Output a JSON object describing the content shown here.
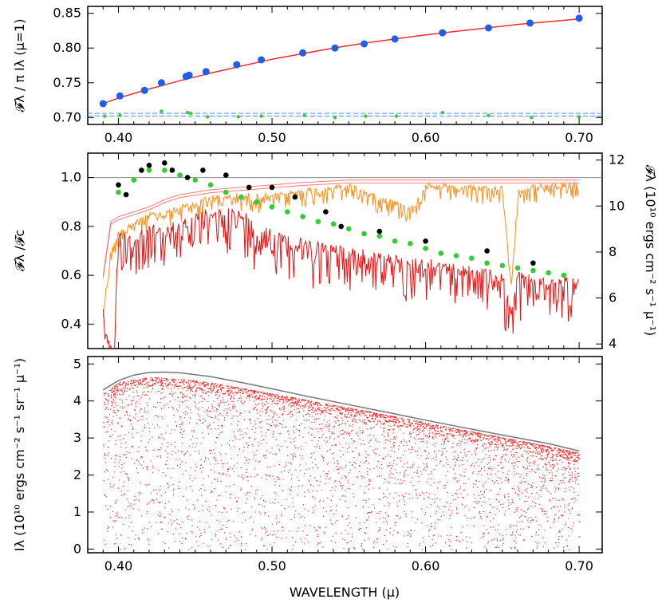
{
  "chart_data": [
    {
      "type": "line",
      "id": "top",
      "ylabel": "𝓕λ / π Iλ (μ=1)",
      "xlim": [
        0.38,
        0.715
      ],
      "ylim": [
        0.69,
        0.86
      ],
      "xticks": [
        "0.40",
        "0.50",
        "0.60",
        "0.70"
      ],
      "xtick_values": [
        0.4,
        0.5,
        0.6,
        0.7
      ],
      "yticks": [
        "0.70",
        "0.75",
        "0.80",
        "0.85"
      ],
      "ytick_values": [
        0.7,
        0.75,
        0.8,
        0.85
      ],
      "series": [
        {
          "kind": "curve",
          "color": "#ff2a2a",
          "x": [
            0.39,
            0.4,
            0.42,
            0.44,
            0.46,
            0.48,
            0.5,
            0.52,
            0.54,
            0.56,
            0.58,
            0.6,
            0.62,
            0.64,
            0.66,
            0.68,
            0.7
          ],
          "y": [
            0.72,
            0.728,
            0.741,
            0.753,
            0.764,
            0.774,
            0.784,
            0.792,
            0.8,
            0.807,
            0.813,
            0.819,
            0.824,
            0.829,
            0.834,
            0.838,
            0.842
          ]
        },
        {
          "kind": "points",
          "color": "#1f5fe8",
          "x": [
            0.39,
            0.401,
            0.417,
            0.428,
            0.444,
            0.446,
            0.457,
            0.477,
            0.493,
            0.52,
            0.541,
            0.56,
            0.58,
            0.611,
            0.641,
            0.668,
            0.7
          ],
          "y": [
            0.72,
            0.731,
            0.739,
            0.75,
            0.759,
            0.761,
            0.766,
            0.776,
            0.783,
            0.793,
            0.8,
            0.806,
            0.813,
            0.822,
            0.829,
            0.836,
            0.843
          ]
        },
        {
          "kind": "hline",
          "color": "#4f8fff",
          "y": [
            0.702,
            0.706
          ]
        },
        {
          "kind": "points-small",
          "color": "#33cc33",
          "x": [
            0.391,
            0.401,
            0.418,
            0.428,
            0.445,
            0.447,
            0.458,
            0.478,
            0.493,
            0.521,
            0.541,
            0.561,
            0.581,
            0.611,
            0.641,
            0.669,
            0.7
          ],
          "y": [
            0.702,
            0.703,
            0.688,
            0.709,
            0.707,
            0.706,
            0.701,
            0.701,
            0.702,
            0.703,
            0.7,
            0.702,
            0.702,
            0.707,
            0.703,
            0.7,
            0.701
          ]
        }
      ]
    },
    {
      "type": "line",
      "id": "middle",
      "ylabel": "𝓕λ /𝓕c",
      "ylabel_right": "𝓕λ (10¹⁰ ergs cm⁻² s⁻¹ μ⁻¹)",
      "xlim": [
        0.38,
        0.715
      ],
      "ylim": [
        0.3,
        1.1
      ],
      "yticks": [
        "0.4",
        "0.6",
        "0.8",
        "1.0"
      ],
      "ytick_values": [
        0.4,
        0.6,
        0.8,
        1.0
      ],
      "yticks_right": [
        "4",
        "6",
        "8",
        "10",
        "12"
      ],
      "ytick_values_right": [
        4,
        6,
        8,
        10,
        12
      ],
      "ylim_right": [
        3.8,
        12.3
      ],
      "series": [
        {
          "kind": "hline",
          "color": "#888888",
          "y": [
            1.0
          ]
        },
        {
          "kind": "envelope",
          "color": "#ff7777",
          "x": [
            0.39,
            0.395,
            0.4,
            0.41,
            0.42,
            0.43,
            0.44,
            0.45,
            0.46,
            0.48,
            0.5,
            0.52,
            0.55,
            0.6,
            0.65,
            0.7
          ],
          "y": [
            0.6,
            0.82,
            0.84,
            0.86,
            0.88,
            0.91,
            0.93,
            0.94,
            0.95,
            0.96,
            0.97,
            0.98,
            0.99,
            0.99,
            0.99,
            0.99
          ]
        },
        {
          "kind": "spectrum-normalized",
          "color": "#ff8c1a",
          "x": [
            0.39,
            0.395,
            0.4,
            0.41,
            0.42,
            0.43,
            0.44,
            0.45,
            0.46,
            0.48,
            0.5,
            0.52,
            0.55,
            0.59,
            0.6,
            0.65,
            0.656,
            0.66,
            0.7
          ],
          "y": [
            0.45,
            0.7,
            0.78,
            0.82,
            0.85,
            0.86,
            0.88,
            0.9,
            0.92,
            0.93,
            0.93,
            0.95,
            0.97,
            0.88,
            0.97,
            0.96,
            0.55,
            0.96,
            0.98
          ]
        },
        {
          "kind": "spectrum-flux",
          "color": "#ee1111",
          "x": [
            0.39,
            0.393,
            0.397,
            0.4,
            0.41,
            0.42,
            0.43,
            0.44,
            0.45,
            0.46,
            0.47,
            0.48,
            0.49,
            0.5,
            0.52,
            0.55,
            0.58,
            0.6,
            0.62,
            0.65,
            0.656,
            0.66,
            0.68,
            0.7
          ],
          "y": [
            0.45,
            0.32,
            0.3,
            0.78,
            0.75,
            0.8,
            0.78,
            0.82,
            0.84,
            0.86,
            0.86,
            0.86,
            0.8,
            0.78,
            0.74,
            0.7,
            0.67,
            0.65,
            0.64,
            0.6,
            0.45,
            0.6,
            0.58,
            0.58
          ]
        },
        {
          "kind": "points",
          "color": "#33cc33",
          "x": [
            0.4,
            0.41,
            0.42,
            0.43,
            0.44,
            0.45,
            0.46,
            0.47,
            0.48,
            0.49,
            0.5,
            0.51,
            0.52,
            0.53,
            0.54,
            0.55,
            0.56,
            0.57,
            0.58,
            0.59,
            0.6,
            0.61,
            0.62,
            0.63,
            0.64,
            0.65,
            0.66,
            0.67,
            0.68,
            0.69
          ],
          "y": [
            0.94,
            0.99,
            1.03,
            1.03,
            1.01,
            0.99,
            0.97,
            0.94,
            0.92,
            0.9,
            0.88,
            0.86,
            0.84,
            0.82,
            0.81,
            0.79,
            0.77,
            0.76,
            0.74,
            0.73,
            0.71,
            0.69,
            0.68,
            0.67,
            0.65,
            0.64,
            0.63,
            0.62,
            0.61,
            0.6
          ]
        },
        {
          "kind": "points",
          "color": "#000000",
          "x": [
            0.4,
            0.405,
            0.415,
            0.42,
            0.43,
            0.435,
            0.445,
            0.455,
            0.47,
            0.485,
            0.5,
            0.515,
            0.535,
            0.545,
            0.57,
            0.6,
            0.64,
            0.67
          ],
          "y": [
            0.97,
            0.93,
            1.03,
            1.05,
            1.06,
            1.03,
            1.0,
            1.03,
            1.01,
            0.96,
            0.96,
            0.92,
            0.86,
            0.8,
            0.78,
            0.74,
            0.7,
            0.65
          ]
        }
      ]
    },
    {
      "type": "line",
      "id": "bottom",
      "ylabel": "Iλ (10¹⁰ ergs cm⁻² s⁻¹ sr⁻¹ μ⁻¹)",
      "xlabel": "WAVELENGTH (μ)",
      "xlim": [
        0.38,
        0.715
      ],
      "ylim": [
        -0.1,
        5.2
      ],
      "xticks": [
        "0.40",
        "0.50",
        "0.60",
        "0.70"
      ],
      "xtick_values": [
        0.4,
        0.5,
        0.6,
        0.7
      ],
      "yticks": [
        "0",
        "1",
        "2",
        "3",
        "4",
        "5"
      ],
      "ytick_values": [
        0,
        1,
        2,
        3,
        4,
        5
      ],
      "series": [
        {
          "kind": "continuum",
          "color": "#777777",
          "x": [
            0.39,
            0.4,
            0.41,
            0.42,
            0.43,
            0.44,
            0.46,
            0.48,
            0.5,
            0.52,
            0.55,
            0.58,
            0.6,
            0.62,
            0.65,
            0.68,
            0.7
          ],
          "y": [
            4.3,
            4.55,
            4.7,
            4.77,
            4.78,
            4.76,
            4.66,
            4.5,
            4.33,
            4.15,
            3.9,
            3.65,
            3.48,
            3.32,
            3.08,
            2.85,
            2.65
          ]
        },
        {
          "kind": "scatter-dense",
          "color": "#ff2020",
          "x": [
            0.39,
            0.4,
            0.42,
            0.44,
            0.46,
            0.48,
            0.5,
            0.52,
            0.55,
            0.58,
            0.6,
            0.62,
            0.65,
            0.68,
            0.7
          ],
          "y": [
            4.2,
            4.5,
            4.65,
            4.6,
            4.5,
            4.35,
            4.2,
            4.05,
            3.82,
            3.58,
            3.42,
            3.26,
            3.02,
            2.78,
            2.6
          ]
        }
      ]
    }
  ]
}
